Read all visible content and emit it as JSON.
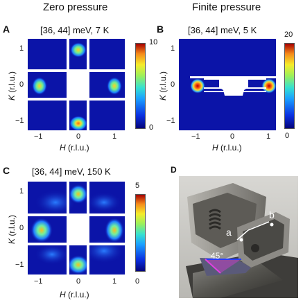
{
  "columns": {
    "left": "Zero pressure",
    "right": "Finite pressure"
  },
  "panels": {
    "A": {
      "letter": "A",
      "title": "[36, 44] meV, 7 K",
      "cb_max": "10",
      "cb_min": "0"
    },
    "B": {
      "letter": "B",
      "title": "[36, 44] meV, 5 K",
      "cb_max": "20",
      "cb_min": "0"
    },
    "C": {
      "letter": "C",
      "title": "[36, 44] meV, 150 K",
      "cb_max": "5",
      "cb_min": "0"
    },
    "D": {
      "letter": "D",
      "photo_labels": {
        "a": "a",
        "b": "b",
        "angle": "45°"
      }
    }
  },
  "axes": {
    "xlabel": "H (r.l.u.)",
    "ylabel": "K (r.l.u.)",
    "x_ticks": [
      "−1",
      "0",
      "1"
    ],
    "y_ticks": [
      "1",
      "0",
      "−1"
    ]
  },
  "colors": {
    "background_map": "#0b14a8",
    "peak": "#e83b10",
    "mask": "#ffffff"
  }
}
